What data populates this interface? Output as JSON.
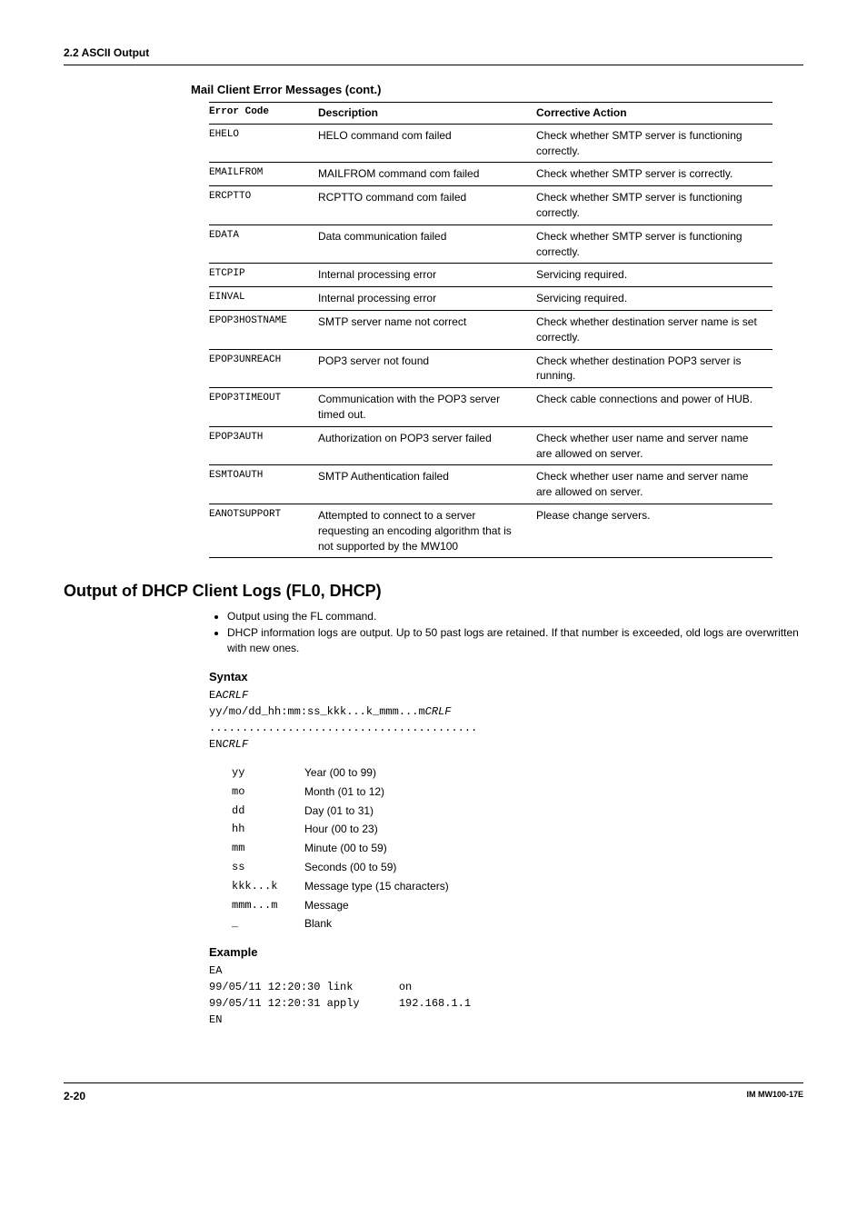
{
  "header": {
    "section": "2.2  ASCII Output"
  },
  "table": {
    "title": "Mail Client Error Messages (cont.)",
    "columns": [
      "Error Code",
      "Description",
      "Corrective Action"
    ],
    "rows": [
      [
        "EHELO",
        "HELO command com failed",
        "Check whether SMTP server is functioning correctly."
      ],
      [
        "EMAILFROM",
        "MAILFROM command com failed",
        "Check whether SMTP server is correctly."
      ],
      [
        "ERCPTTO",
        "RCPTTO command com failed",
        "Check whether SMTP server is functioning correctly."
      ],
      [
        "EDATA",
        "Data communication failed",
        "Check whether SMTP server is functioning correctly."
      ],
      [
        "ETCPIP",
        "Internal processing error",
        "Servicing required."
      ],
      [
        "EINVAL",
        "Internal processing error",
        "Servicing required."
      ],
      [
        "EPOP3HOSTNAME",
        "SMTP server name not correct",
        "Check whether destination server name is set correctly."
      ],
      [
        "EPOP3UNREACH",
        "POP3 server not found",
        "Check whether destination POP3 server is running."
      ],
      [
        "EPOP3TIMEOUT",
        "Communication with the  POP3 server timed out.",
        "Check cable connections and power of HUB."
      ],
      [
        "EPOP3AUTH",
        "Authorization on POP3 server failed",
        "Check whether user name and server name are allowed on server."
      ],
      [
        "ESMTOAUTH",
        "SMTP Authentication failed",
        "Check whether user name and server name are allowed on server."
      ],
      [
        "EANOTSUPPORT",
        "Attempted to connect to a server requesting an encoding algorithm that is not supported by the MW100",
        "Please change servers."
      ]
    ]
  },
  "dhcp": {
    "heading": "Output of DHCP Client Logs (FL0, DHCP)",
    "bullets": [
      "Output using the FL command.",
      "DHCP information logs are output. Up to 50 past logs are retained. If that number is exceeded, old logs are overwritten with new ones."
    ],
    "syntax_label": "Syntax",
    "syntax_lines": {
      "l1a": "EA",
      "l1b": "CRLF",
      "l2a": "yy/mo/dd_hh:mm:ss_kkk...k_mmm...m",
      "l2b": "CRLF",
      "dots": ".........................................",
      "l3a": "EN",
      "l3b": "CRLF"
    },
    "params": [
      [
        "yy",
        "Year (00 to 99)"
      ],
      [
        "mo",
        "Month (01 to 12)"
      ],
      [
        "dd",
        "Day (01 to 31)"
      ],
      [
        "hh",
        "Hour (00 to 23)"
      ],
      [
        "mm",
        "Minute (00 to 59)"
      ],
      [
        "ss",
        "Seconds (00 to 59)"
      ],
      [
        "kkk...k",
        "Message type (15 characters)"
      ],
      [
        "mmm...m",
        "Message"
      ],
      [
        "_",
        "Blank"
      ]
    ],
    "example_label": "Example",
    "example_text": "EA\n99/05/11 12:20:30 link       on\n99/05/11 12:20:31 apply      192.168.1.1\nEN"
  },
  "footer": {
    "page": "2-20",
    "doc": "IM MW100-17E"
  }
}
